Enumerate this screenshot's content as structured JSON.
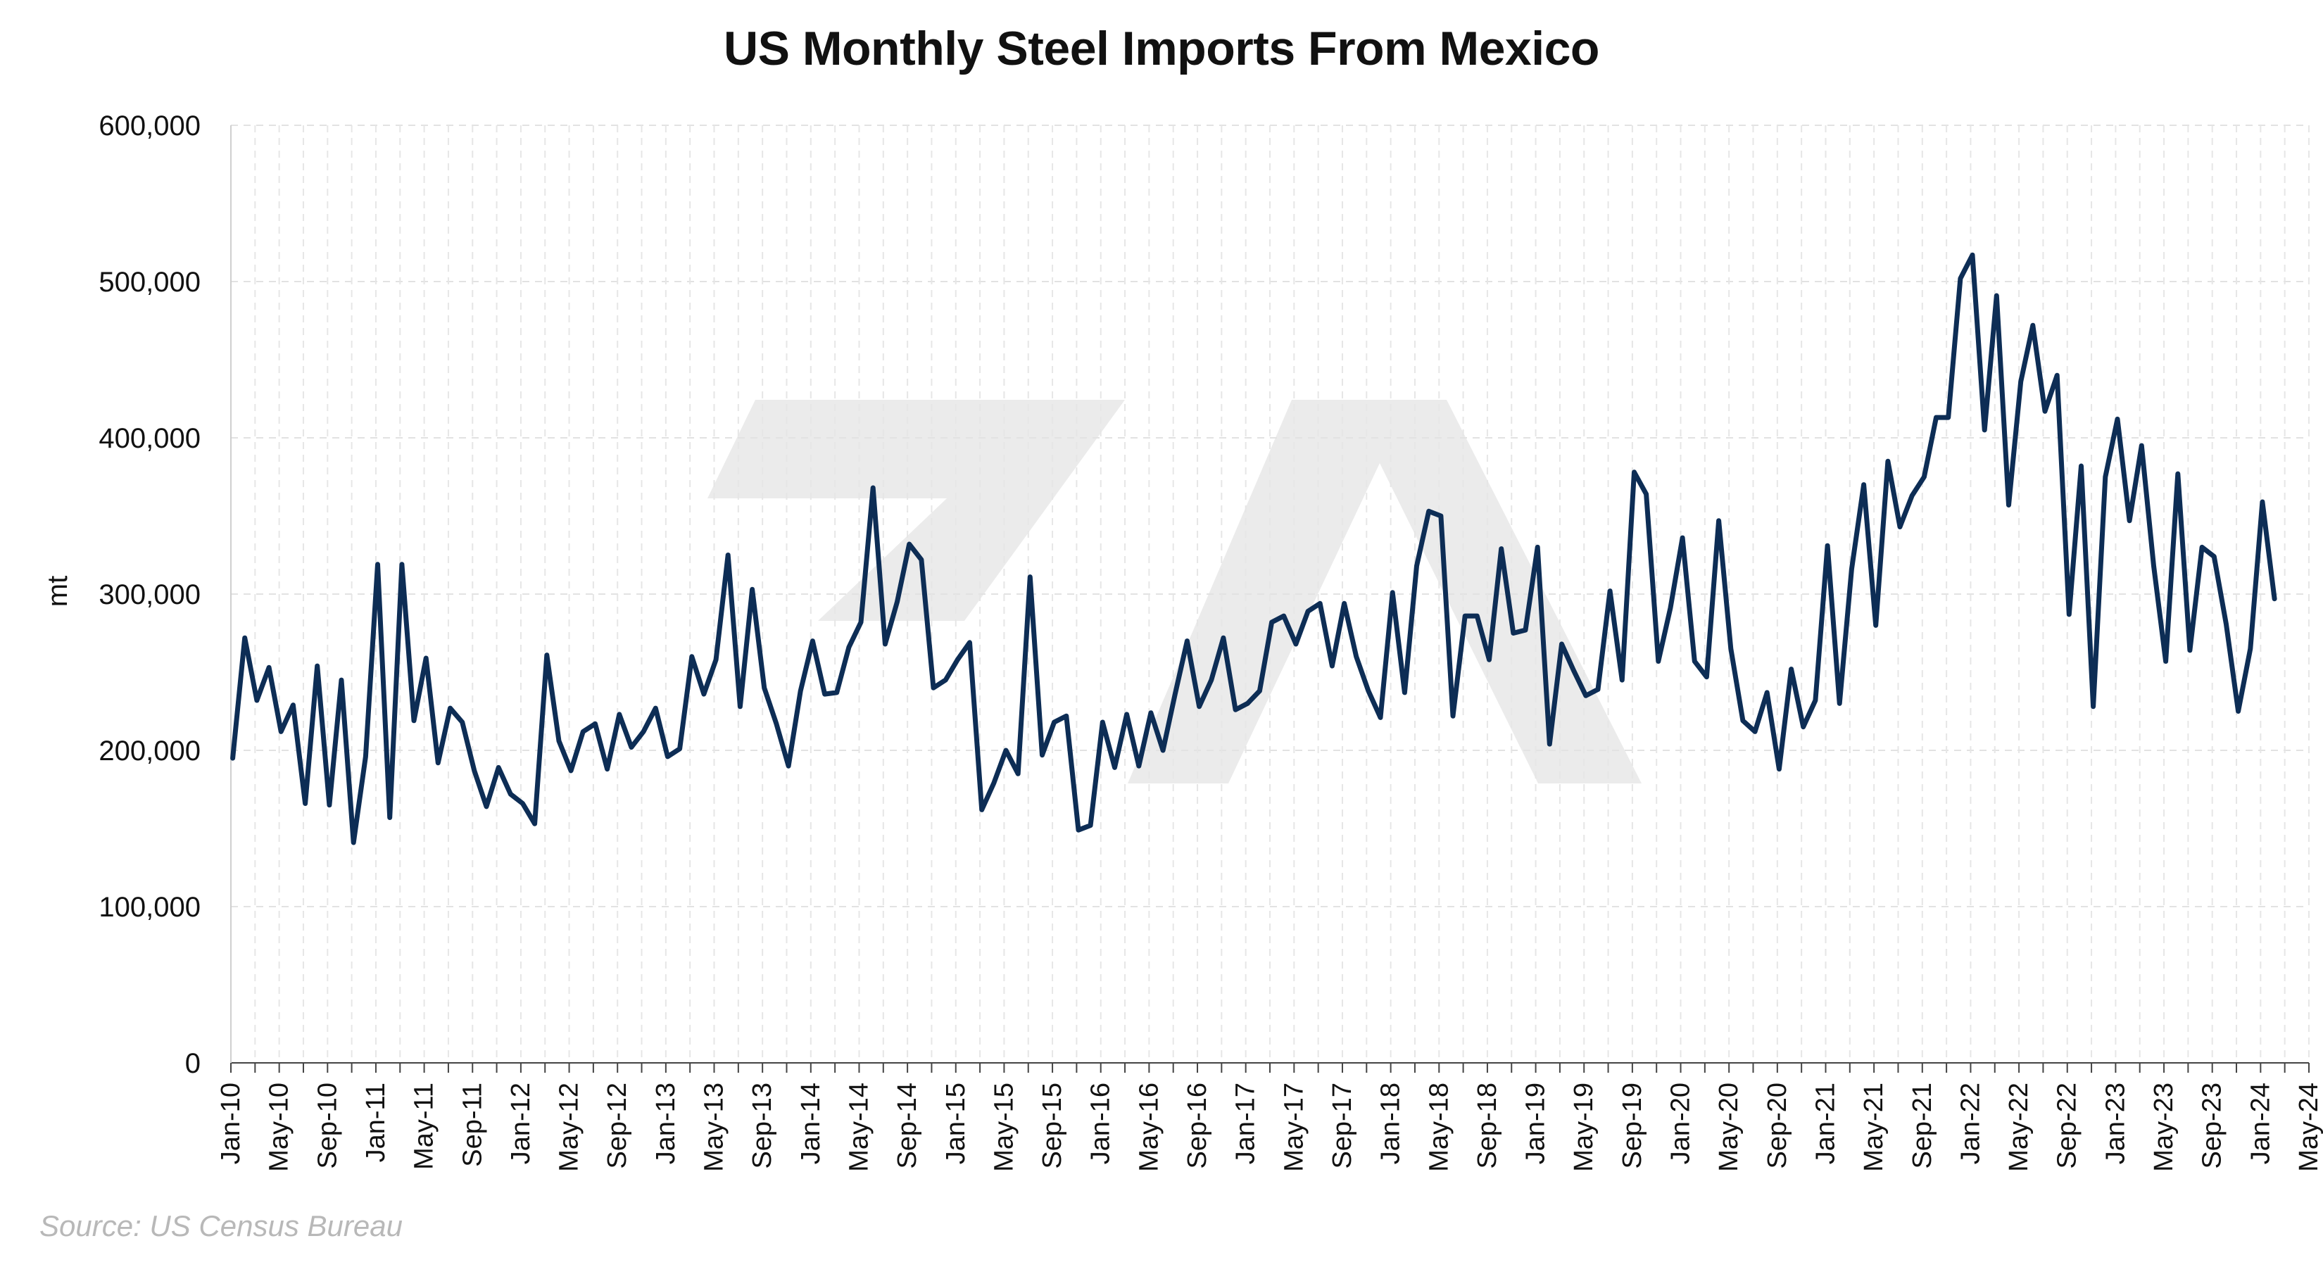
{
  "chart_data": {
    "type": "line",
    "title": "US Monthly Steel Imports From Mexico",
    "ylabel": "mt",
    "xlabel": "",
    "source": "Source: US Census Bureau",
    "ylim": [
      0,
      600000
    ],
    "y_ticks": [
      0,
      100000,
      200000,
      300000,
      400000,
      500000,
      600000
    ],
    "y_tick_labels": [
      "0",
      "100,000",
      "200,000",
      "300,000",
      "400,000",
      "500,000",
      "600,000"
    ],
    "x_tick_labels": [
      "Jan-10",
      "May-10",
      "Sep-10",
      "Jan-11",
      "May-11",
      "Sep-11",
      "Jan-12",
      "May-12",
      "Sep-12",
      "Jan-13",
      "May-13",
      "Sep-13",
      "Jan-14",
      "May-14",
      "Sep-14",
      "Jan-15",
      "May-15",
      "Sep-15",
      "Jan-16",
      "May-16",
      "Sep-16",
      "Jan-17",
      "May-17",
      "Sep-17",
      "Jan-18",
      "May-18",
      "Sep-18",
      "Jan-19",
      "May-19",
      "Sep-19",
      "Jan-20",
      "May-20",
      "Sep-20",
      "Jan-21",
      "May-21",
      "Sep-21",
      "Jan-22",
      "May-22",
      "Sep-22",
      "Jan-23",
      "May-23",
      "Sep-23",
      "Jan-24",
      "May-24"
    ],
    "x_start": "Jan-10",
    "x_interval": "month",
    "grid": true,
    "line_color": "#0d2d55",
    "series": [
      {
        "name": "",
        "values": [
          195000,
          272000,
          232000,
          253000,
          212000,
          229000,
          166000,
          254000,
          165000,
          245000,
          141000,
          196000,
          319000,
          157000,
          319000,
          219000,
          259000,
          192000,
          227000,
          218000,
          187000,
          164000,
          189000,
          172000,
          166000,
          153000,
          261000,
          206000,
          187000,
          212000,
          217000,
          188000,
          223000,
          202000,
          212000,
          227000,
          196000,
          201000,
          260000,
          236000,
          258000,
          325000,
          228000,
          303000,
          240000,
          217000,
          190000,
          238000,
          270000,
          236000,
          237000,
          266000,
          282000,
          368000,
          268000,
          295000,
          332000,
          322000,
          240000,
          245000,
          258000,
          269000,
          162000,
          179000,
          200000,
          185000,
          311000,
          197000,
          218000,
          222000,
          149000,
          152000,
          218000,
          189000,
          223000,
          190000,
          224000,
          200000,
          236000,
          270000,
          228000,
          245000,
          272000,
          226000,
          230000,
          238000,
          282000,
          286000,
          268000,
          289000,
          294000,
          254000,
          294000,
          260000,
          238000,
          221000,
          301000,
          237000,
          318000,
          353000,
          350000,
          222000,
          286000,
          286000,
          258000,
          329000,
          275000,
          277000,
          330000,
          204000,
          268000,
          251000,
          235000,
          239000,
          302000,
          245000,
          378000,
          364000,
          257000,
          291000,
          336000,
          257000,
          247000,
          347000,
          265000,
          219000,
          212000,
          237000,
          188000,
          252000,
          215000,
          232000,
          331000,
          230000,
          316000,
          370000,
          280000,
          385000,
          343000,
          363000,
          375000,
          413000,
          413000,
          502000,
          517000,
          405000,
          491000,
          357000,
          436000,
          472000,
          417000,
          440000,
          287000,
          382000,
          228000,
          375000,
          412000,
          347000,
          395000,
          318000,
          257000,
          377000,
          264000,
          330000,
          324000,
          281000,
          225000,
          265000,
          359000,
          297000
        ]
      }
    ]
  },
  "watermark": {
    "label": "logo watermark"
  }
}
